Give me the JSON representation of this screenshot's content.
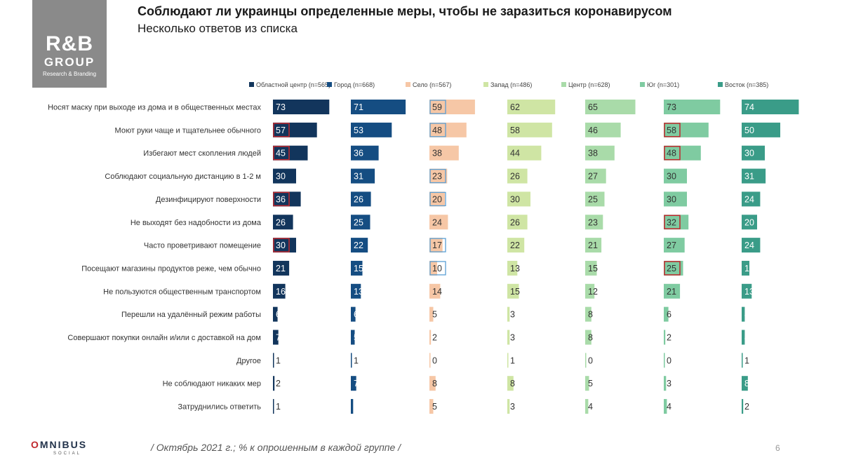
{
  "header": {
    "title": "Соблюдают ли украинцы определенные меры, чтобы не заразиться коронавирусом",
    "subtitle": "Несколько ответов из списка"
  },
  "logo": {
    "main": "R&B",
    "group": "GROUP",
    "sub": "Research & Branding"
  },
  "footer": {
    "brand_o": "O",
    "brand_rest": "MNIBUS",
    "brand_sub": "SOCIAL",
    "note": "/ Октябрь 2021 г.; % к опрошенным в каждой группе /",
    "page": "6"
  },
  "colors": {
    "Областной центр (n=565)": "#12355c",
    "Город (n=668)": "#154d82",
    "Село (n=567)": "#f6c7a6",
    "Запад (n=486)": "#cfe5a4",
    "Центр (n=628)": "#a9dba9",
    "Юг (n=301)": "#7fcba1",
    "Восток (n=385)": "#3a9c88",
    "highlight_red": "#c0282d",
    "highlight_blue": "#5a9fd4"
  },
  "chart_data": {
    "type": "bar",
    "orientation": "horizontal",
    "layout": "small-multiples",
    "title": "Соблюдают ли украинцы определенные меры, чтобы не заразиться коронавирусом",
    "subtitle": "Несколько ответов из списка",
    "unit": "%",
    "categories": [
      "Носят маску при выходе из дома и в общественных местах",
      "Моют руки чаще и тщательнее обычного",
      "Избегают мест скопления людей",
      "Соблюдают социальную дистанцию в 1-2 м",
      "Дезинфицируют поверхности",
      "Не выходят без надобности из дома",
      "Часто проветривают помещение",
      "Посещают магазины продуктов реже, чем обычно",
      "Не пользуются общественным транспортом",
      "Перешли на удалённый режим работы",
      "Совершают покупки онлайн и/или с доставкой на дом",
      "Другое",
      "Не соблюдают никаких мер",
      "Затруднились ответить"
    ],
    "series": [
      {
        "name": "Областной центр (n=565)",
        "values": [
          73,
          57,
          45,
          30,
          36,
          26,
          30,
          21,
          16,
          6,
          7,
          1,
          2,
          1
        ]
      },
      {
        "name": "Город (n=668)",
        "values": [
          71,
          53,
          36,
          31,
          26,
          25,
          22,
          15,
          13,
          6,
          5,
          1,
          7,
          3
        ]
      },
      {
        "name": "Село (n=567)",
        "values": [
          59,
          48,
          38,
          23,
          20,
          24,
          17,
          10,
          14,
          5,
          2,
          0,
          8,
          5
        ]
      },
      {
        "name": "Запад (n=486)",
        "values": [
          62,
          58,
          44,
          26,
          30,
          26,
          22,
          13,
          15,
          3,
          3,
          1,
          8,
          3
        ]
      },
      {
        "name": "Центр (n=628)",
        "values": [
          65,
          46,
          38,
          27,
          25,
          23,
          21,
          15,
          12,
          8,
          8,
          0,
          5,
          4
        ]
      },
      {
        "name": "Юг (n=301)",
        "values": [
          73,
          58,
          48,
          30,
          30,
          32,
          27,
          25,
          21,
          6,
          2,
          0,
          3,
          4
        ]
      },
      {
        "name": "Восток (n=385)",
        "values": [
          74,
          50,
          30,
          31,
          24,
          20,
          24,
          10,
          13,
          4,
          4,
          1,
          8,
          2
        ]
      }
    ],
    "highlights": {
      "red": [
        [
          0,
          1
        ],
        [
          0,
          2
        ],
        [
          0,
          4
        ],
        [
          0,
          6
        ],
        [
          5,
          1
        ],
        [
          5,
          2
        ],
        [
          5,
          5
        ],
        [
          5,
          7
        ]
      ],
      "blue": [
        [
          2,
          0
        ],
        [
          2,
          1
        ],
        [
          2,
          3
        ],
        [
          2,
          4
        ],
        [
          2,
          6
        ],
        [
          2,
          7
        ]
      ]
    },
    "xlim": [
      0,
      100
    ],
    "legend": "top"
  }
}
